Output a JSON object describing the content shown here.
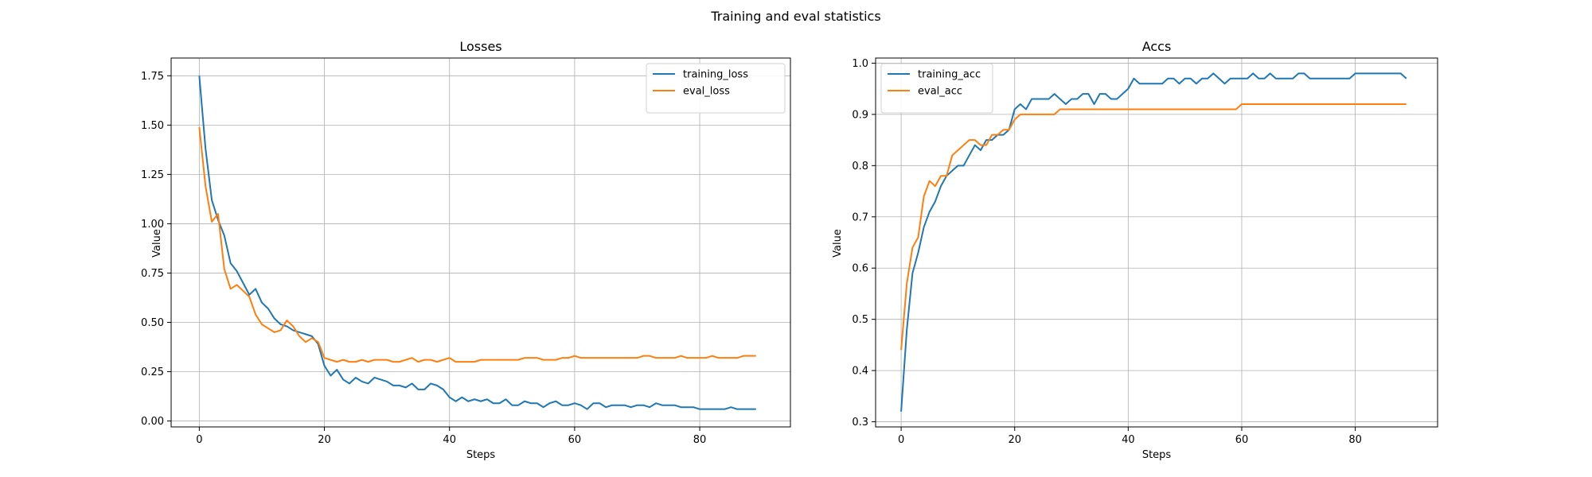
{
  "figure": {
    "title": "Training and eval statistics"
  },
  "chart_data": [
    {
      "type": "line",
      "title": "Losses",
      "xlabel": "Steps",
      "ylabel": "Value",
      "xlim": [
        -4.5,
        94.5
      ],
      "ylim": [
        -0.03,
        1.84
      ],
      "xticks": [
        0,
        20,
        40,
        60,
        80
      ],
      "yticks": [
        0.0,
        0.25,
        0.5,
        0.75,
        1.0,
        1.25,
        1.5,
        1.75
      ],
      "ytick_decimals": 2,
      "grid": true,
      "legend": "top-right",
      "series": [
        {
          "name": "training_loss",
          "color": "#1f77b4",
          "values": [
            1.75,
            1.38,
            1.12,
            1.02,
            0.94,
            0.8,
            0.76,
            0.7,
            0.64,
            0.67,
            0.6,
            0.57,
            0.52,
            0.49,
            0.48,
            0.46,
            0.45,
            0.44,
            0.43,
            0.39,
            0.28,
            0.23,
            0.26,
            0.21,
            0.19,
            0.22,
            0.2,
            0.19,
            0.22,
            0.21,
            0.2,
            0.18,
            0.18,
            0.17,
            0.19,
            0.16,
            0.16,
            0.19,
            0.18,
            0.16,
            0.12,
            0.1,
            0.12,
            0.1,
            0.11,
            0.1,
            0.11,
            0.09,
            0.09,
            0.11,
            0.08,
            0.08,
            0.1,
            0.09,
            0.09,
            0.07,
            0.09,
            0.1,
            0.08,
            0.08,
            0.09,
            0.08,
            0.06,
            0.09,
            0.09,
            0.07,
            0.08,
            0.08,
            0.08,
            0.07,
            0.08,
            0.08,
            0.07,
            0.09,
            0.08,
            0.08,
            0.08,
            0.07,
            0.07,
            0.07,
            0.06,
            0.06,
            0.06,
            0.06,
            0.06,
            0.07,
            0.06,
            0.06,
            0.06,
            0.06
          ]
        },
        {
          "name": "eval_loss",
          "color": "#ff7f0e",
          "values": [
            1.49,
            1.19,
            1.01,
            1.05,
            0.77,
            0.67,
            0.69,
            0.66,
            0.63,
            0.54,
            0.49,
            0.47,
            0.45,
            0.46,
            0.51,
            0.48,
            0.43,
            0.4,
            0.42,
            0.4,
            0.32,
            0.31,
            0.3,
            0.31,
            0.3,
            0.3,
            0.31,
            0.3,
            0.31,
            0.31,
            0.31,
            0.3,
            0.3,
            0.31,
            0.32,
            0.3,
            0.31,
            0.31,
            0.3,
            0.31,
            0.32,
            0.3,
            0.3,
            0.3,
            0.3,
            0.31,
            0.31,
            0.31,
            0.31,
            0.31,
            0.31,
            0.31,
            0.32,
            0.32,
            0.32,
            0.31,
            0.31,
            0.31,
            0.32,
            0.32,
            0.33,
            0.32,
            0.32,
            0.32,
            0.32,
            0.32,
            0.32,
            0.32,
            0.32,
            0.32,
            0.32,
            0.33,
            0.33,
            0.32,
            0.32,
            0.32,
            0.32,
            0.33,
            0.32,
            0.32,
            0.32,
            0.32,
            0.33,
            0.32,
            0.32,
            0.32,
            0.32,
            0.33,
            0.33,
            0.33
          ]
        }
      ]
    },
    {
      "type": "line",
      "title": "Accs",
      "xlabel": "Steps",
      "ylabel": "Value",
      "xlim": [
        -4.5,
        94.5
      ],
      "ylim": [
        0.29,
        1.01
      ],
      "xticks": [
        0,
        20,
        40,
        60,
        80
      ],
      "yticks": [
        0.3,
        0.4,
        0.5,
        0.6,
        0.7,
        0.8,
        0.9,
        1.0
      ],
      "ytick_decimals": 1,
      "grid": true,
      "legend": "top-left",
      "series": [
        {
          "name": "training_acc",
          "color": "#1f77b4",
          "values": [
            0.32,
            0.48,
            0.59,
            0.63,
            0.68,
            0.71,
            0.73,
            0.76,
            0.78,
            0.79,
            0.8,
            0.8,
            0.82,
            0.84,
            0.83,
            0.85,
            0.85,
            0.86,
            0.86,
            0.87,
            0.91,
            0.92,
            0.91,
            0.93,
            0.93,
            0.93,
            0.93,
            0.94,
            0.93,
            0.92,
            0.93,
            0.93,
            0.94,
            0.94,
            0.92,
            0.94,
            0.94,
            0.93,
            0.93,
            0.94,
            0.95,
            0.97,
            0.96,
            0.96,
            0.96,
            0.96,
            0.96,
            0.97,
            0.97,
            0.96,
            0.97,
            0.97,
            0.96,
            0.97,
            0.97,
            0.98,
            0.97,
            0.96,
            0.97,
            0.97,
            0.97,
            0.97,
            0.98,
            0.97,
            0.97,
            0.98,
            0.97,
            0.97,
            0.97,
            0.97,
            0.98,
            0.98,
            0.97,
            0.97,
            0.97,
            0.97,
            0.97,
            0.97,
            0.97,
            0.97,
            0.98,
            0.98,
            0.98,
            0.98,
            0.98,
            0.98,
            0.98,
            0.98,
            0.98,
            0.97
          ]
        },
        {
          "name": "eval_acc",
          "color": "#ff7f0e",
          "values": [
            0.44,
            0.57,
            0.64,
            0.66,
            0.74,
            0.77,
            0.76,
            0.78,
            0.78,
            0.82,
            0.83,
            0.84,
            0.85,
            0.85,
            0.84,
            0.84,
            0.86,
            0.86,
            0.87,
            0.87,
            0.89,
            0.9,
            0.9,
            0.9,
            0.9,
            0.9,
            0.9,
            0.9,
            0.91,
            0.91,
            0.91,
            0.91,
            0.91,
            0.91,
            0.91,
            0.91,
            0.91,
            0.91,
            0.91,
            0.91,
            0.91,
            0.91,
            0.91,
            0.91,
            0.91,
            0.91,
            0.91,
            0.91,
            0.91,
            0.91,
            0.91,
            0.91,
            0.91,
            0.91,
            0.91,
            0.91,
            0.91,
            0.91,
            0.91,
            0.91,
            0.92,
            0.92,
            0.92,
            0.92,
            0.92,
            0.92,
            0.92,
            0.92,
            0.92,
            0.92,
            0.92,
            0.92,
            0.92,
            0.92,
            0.92,
            0.92,
            0.92,
            0.92,
            0.92,
            0.92,
            0.92,
            0.92,
            0.92,
            0.92,
            0.92,
            0.92,
            0.92,
            0.92,
            0.92,
            0.92
          ]
        }
      ]
    }
  ]
}
